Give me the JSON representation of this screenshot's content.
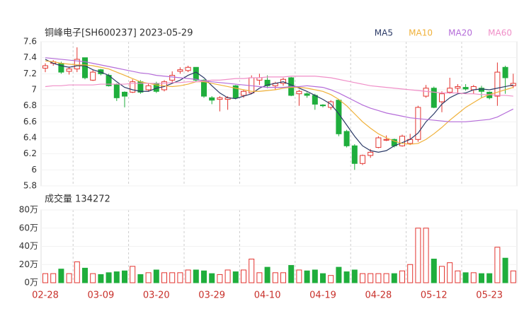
{
  "chart_data": {
    "type": "candlestick",
    "title": "铜峰电子[SH600237] 2023-05-29",
    "categories": [
      "02-28",
      null,
      null,
      null,
      null,
      null,
      null,
      "03-09",
      null,
      null,
      null,
      null,
      null,
      null,
      "03-20",
      null,
      null,
      null,
      null,
      null,
      null,
      "03-29",
      null,
      null,
      null,
      null,
      null,
      null,
      "04-10",
      null,
      null,
      null,
      null,
      null,
      null,
      "04-19",
      null,
      null,
      null,
      null,
      null,
      null,
      "04-28",
      null,
      null,
      null,
      null,
      null,
      null,
      "05-12",
      null,
      null,
      null,
      null,
      null,
      null,
      "05-23",
      null,
      null,
      null
    ],
    "open": [
      7.27,
      7.33,
      7.33,
      7.23,
      7.26,
      7.4,
      7.12,
      7.25,
      7.18,
      7.07,
      6.97,
      6.97,
      7.1,
      7.0,
      7.08,
      7.0,
      7.12,
      7.23,
      7.24,
      7.28,
      7.12,
      6.9,
      6.88,
      6.88,
      7.05,
      6.93,
      6.96,
      7.12,
      7.12,
      7.05,
      7.08,
      7.15,
      6.95,
      6.95,
      6.93,
      6.81,
      6.78,
      6.87,
      6.48,
      6.3,
      6.08,
      6.18,
      6.28,
      6.37,
      6.38,
      6.3,
      6.33,
      6.38,
      6.92,
      7.02,
      6.85,
      6.97,
      7.02,
      7.03,
      7.0,
      7.02,
      6.97,
      6.92,
      7.28,
      7.05
    ],
    "high": [
      7.33,
      7.37,
      7.35,
      7.29,
      7.53,
      7.4,
      7.25,
      7.26,
      7.2,
      7.08,
      6.98,
      7.13,
      7.12,
      7.08,
      7.1,
      7.12,
      7.23,
      7.28,
      7.3,
      7.28,
      7.13,
      6.92,
      6.92,
      6.92,
      7.06,
      7.0,
      7.18,
      7.2,
      7.18,
      7.1,
      7.15,
      7.16,
      7.0,
      6.97,
      6.95,
      6.82,
      6.87,
      6.88,
      6.5,
      6.32,
      6.19,
      6.26,
      6.42,
      6.43,
      6.39,
      6.44,
      6.45,
      6.8,
      7.06,
      7.04,
      6.98,
      7.15,
      7.07,
      7.07,
      7.06,
      7.05,
      6.98,
      7.34,
      7.3,
      7.2
    ],
    "low": [
      7.22,
      7.3,
      7.2,
      7.19,
      7.22,
      7.13,
      7.11,
      7.18,
      7.04,
      6.86,
      6.78,
      6.96,
      6.95,
      6.98,
      6.96,
      6.98,
      7.08,
      7.2,
      7.22,
      7.1,
      6.9,
      6.82,
      6.73,
      6.75,
      6.88,
      6.9,
      6.95,
      7.06,
      7.02,
      7.0,
      7.05,
      6.92,
      6.8,
      6.9,
      6.75,
      6.78,
      6.75,
      6.42,
      6.28,
      6.0,
      6.06,
      6.15,
      6.27,
      6.36,
      6.28,
      6.29,
      6.31,
      6.35,
      6.9,
      6.77,
      6.72,
      6.95,
      6.96,
      6.99,
      6.95,
      6.9,
      6.88,
      6.8,
      6.95,
      7.02
    ],
    "close": [
      7.3,
      7.35,
      7.22,
      7.26,
      7.38,
      7.15,
      7.22,
      7.2,
      7.05,
      6.9,
      6.92,
      7.1,
      6.97,
      7.05,
      6.98,
      7.1,
      7.18,
      7.25,
      7.28,
      7.12,
      6.92,
      6.87,
      6.9,
      6.9,
      6.9,
      6.98,
      7.15,
      7.15,
      7.05,
      7.08,
      7.13,
      6.93,
      6.98,
      6.93,
      6.82,
      6.8,
      6.85,
      6.45,
      6.3,
      6.08,
      6.18,
      6.22,
      6.4,
      6.38,
      6.3,
      6.42,
      6.38,
      6.78,
      7.02,
      6.78,
      6.95,
      7.02,
      7.04,
      7.01,
      7.04,
      6.98,
      6.9,
      7.22,
      7.15,
      7.08
    ],
    "up_color": "#e3342f",
    "down_color": "#1fae3c",
    "ylim": [
      5.8,
      7.6
    ],
    "yticks": [
      5.8,
      6,
      6.2,
      6.4,
      6.6,
      6.8,
      7,
      7.2,
      7.4,
      7.6
    ],
    "series": [
      {
        "name": "MA5",
        "color": "#2b3a67",
        "values": [
          7.38,
          7.33,
          7.3,
          7.28,
          7.3,
          7.3,
          7.25,
          7.22,
          7.18,
          7.1,
          7.03,
          7.0,
          6.98,
          6.98,
          7.02,
          7.04,
          7.08,
          7.12,
          7.18,
          7.22,
          7.15,
          7.05,
          6.96,
          6.9,
          6.89,
          6.92,
          6.95,
          7.02,
          7.06,
          7.08,
          7.1,
          7.06,
          7.02,
          6.98,
          6.93,
          6.88,
          6.82,
          6.7,
          6.56,
          6.42,
          6.3,
          6.24,
          6.22,
          6.24,
          6.3,
          6.34,
          6.38,
          6.46,
          6.6,
          6.7,
          6.82,
          6.9,
          6.95,
          6.96,
          7.0,
          7.01,
          7.0,
          7.02,
          7.04,
          7.06
        ]
      },
      {
        "name": "MA10",
        "color": "#f0b13a",
        "values": [
          7.36,
          7.35,
          7.33,
          7.32,
          7.31,
          7.31,
          7.3,
          7.28,
          7.26,
          7.22,
          7.18,
          7.14,
          7.1,
          7.08,
          7.06,
          7.05,
          7.04,
          7.05,
          7.07,
          7.1,
          7.1,
          7.08,
          7.06,
          7.04,
          7.02,
          7.0,
          6.98,
          6.98,
          6.99,
          7.0,
          7.02,
          7.03,
          7.03,
          7.02,
          7.0,
          6.98,
          6.94,
          6.88,
          6.8,
          6.7,
          6.6,
          6.52,
          6.45,
          6.4,
          6.36,
          6.33,
          6.32,
          6.33,
          6.38,
          6.45,
          6.53,
          6.62,
          6.7,
          6.78,
          6.84,
          6.9,
          6.94,
          6.97,
          7.0,
          7.03
        ]
      },
      {
        "name": "MA20",
        "color": "#b56cd9",
        "values": [
          7.4,
          7.39,
          7.38,
          7.37,
          7.36,
          7.35,
          7.33,
          7.31,
          7.29,
          7.27,
          7.25,
          7.23,
          7.21,
          7.2,
          7.18,
          7.17,
          7.16,
          7.15,
          7.14,
          7.13,
          7.11,
          7.1,
          7.09,
          7.08,
          7.07,
          7.06,
          7.05,
          7.04,
          7.03,
          7.03,
          7.03,
          7.04,
          7.04,
          7.05,
          7.04,
          7.03,
          7.0,
          6.96,
          6.91,
          6.86,
          6.81,
          6.77,
          6.74,
          6.71,
          6.69,
          6.67,
          6.65,
          6.64,
          6.63,
          6.62,
          6.61,
          6.6,
          6.6,
          6.6,
          6.61,
          6.62,
          6.63,
          6.66,
          6.71,
          6.76
        ]
      },
      {
        "name": "MA60",
        "color": "#f08fc8",
        "values": [
          7.04,
          7.05,
          7.05,
          7.06,
          7.06,
          7.06,
          7.06,
          7.07,
          7.07,
          7.07,
          7.07,
          7.08,
          7.08,
          7.08,
          7.08,
          7.08,
          7.09,
          7.09,
          7.1,
          7.1,
          7.11,
          7.12,
          7.12,
          7.13,
          7.14,
          7.14,
          7.15,
          7.15,
          7.16,
          7.16,
          7.16,
          7.17,
          7.17,
          7.17,
          7.17,
          7.16,
          7.15,
          7.13,
          7.11,
          7.09,
          7.07,
          7.05,
          7.04,
          7.03,
          7.02,
          7.01,
          7.0,
          6.99,
          6.98,
          6.97,
          6.96,
          6.96,
          6.96,
          6.95,
          6.95,
          6.94,
          6.94,
          6.93,
          6.93,
          6.92
        ]
      }
    ],
    "volume": {
      "label": "成交量 134272",
      "values": [
        10,
        10,
        15,
        10,
        23,
        16,
        10,
        9,
        11,
        12,
        13,
        18,
        9,
        11,
        14,
        11,
        11,
        11,
        14,
        14,
        13,
        10,
        9,
        14,
        12,
        14,
        26,
        11,
        17,
        11,
        11,
        19,
        14,
        13,
        14,
        10,
        8,
        17,
        12,
        14,
        10,
        10,
        10,
        10,
        10,
        13,
        20,
        60,
        60,
        26,
        18,
        22,
        13,
        11,
        11,
        10,
        10,
        39,
        27,
        13
      ],
      "ylim": [
        0,
        80
      ],
      "yticks": [
        {
          "value": 0,
          "label": "0万"
        },
        {
          "value": 20,
          "label": "20万"
        },
        {
          "value": 40,
          "label": "40万"
        },
        {
          "value": 60,
          "label": "60万"
        },
        {
          "value": 80,
          "label": "80万"
        }
      ]
    }
  }
}
